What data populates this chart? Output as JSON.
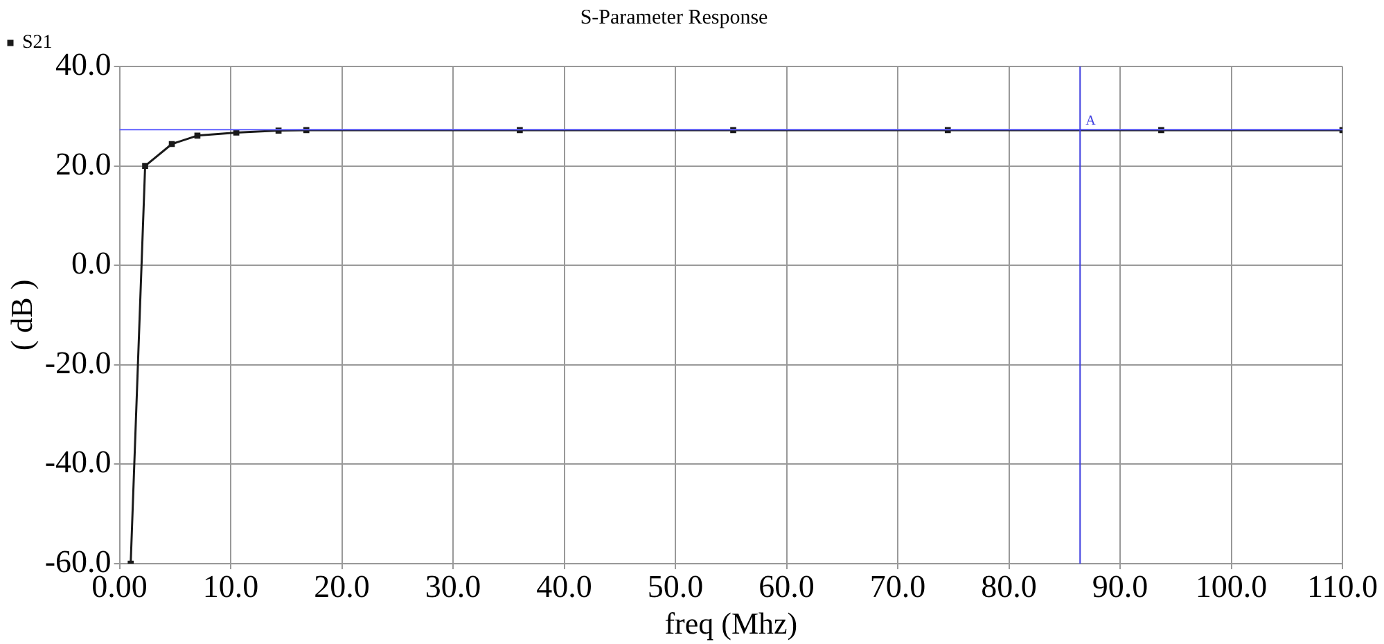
{
  "chart_data": {
    "type": "line",
    "title": "S-Parameter Response",
    "xlabel": "freq (Mhz)",
    "ylabel": "( dB )",
    "x": [
      1.0,
      2.3,
      4.7,
      7.0,
      10.5,
      14.3,
      16.8,
      36.0,
      55.2,
      74.5,
      93.7,
      110
    ],
    "series": [
      {
        "name": "S21",
        "color": "#1a1a1a",
        "values": [
          -60,
          20,
          24.4,
          26.1,
          26.7,
          27.1,
          27.2,
          27.2,
          27.2,
          27.2,
          27.2,
          27.2
        ]
      }
    ],
    "xlim": [
      0,
      110
    ],
    "xticks": [
      {
        "value": 0,
        "label": "0.00"
      },
      {
        "value": 10,
        "label": "10.0"
      },
      {
        "value": 20,
        "label": "20.0"
      },
      {
        "value": 30,
        "label": "30.0"
      },
      {
        "value": 40,
        "label": "40.0"
      },
      {
        "value": 50,
        "label": "50.0"
      },
      {
        "value": 60,
        "label": "60.0"
      },
      {
        "value": 70,
        "label": "70.0"
      },
      {
        "value": 80,
        "label": "80.0"
      },
      {
        "value": 90,
        "label": "90.0"
      },
      {
        "value": 100,
        "label": "100.0"
      },
      {
        "value": 110,
        "label": "110.0"
      }
    ],
    "ylim": [
      -60,
      40
    ],
    "yticks": [
      {
        "value": -60,
        "label": "-60.0"
      },
      {
        "value": -40,
        "label": "-40.0"
      },
      {
        "value": -20,
        "label": "-20.0"
      },
      {
        "value": 0,
        "label": "0.0"
      },
      {
        "value": 20,
        "label": "20.0"
      },
      {
        "value": 40,
        "label": "40.0"
      }
    ],
    "ref_lines": [
      {
        "axis": "y",
        "value": 27.3,
        "color": "#6060ff"
      },
      {
        "axis": "x",
        "value": 86.4,
        "label": "A",
        "color": "#4040e0"
      }
    ],
    "grid": true,
    "legend": "top left",
    "marker": "square",
    "line_style": "solid"
  }
}
